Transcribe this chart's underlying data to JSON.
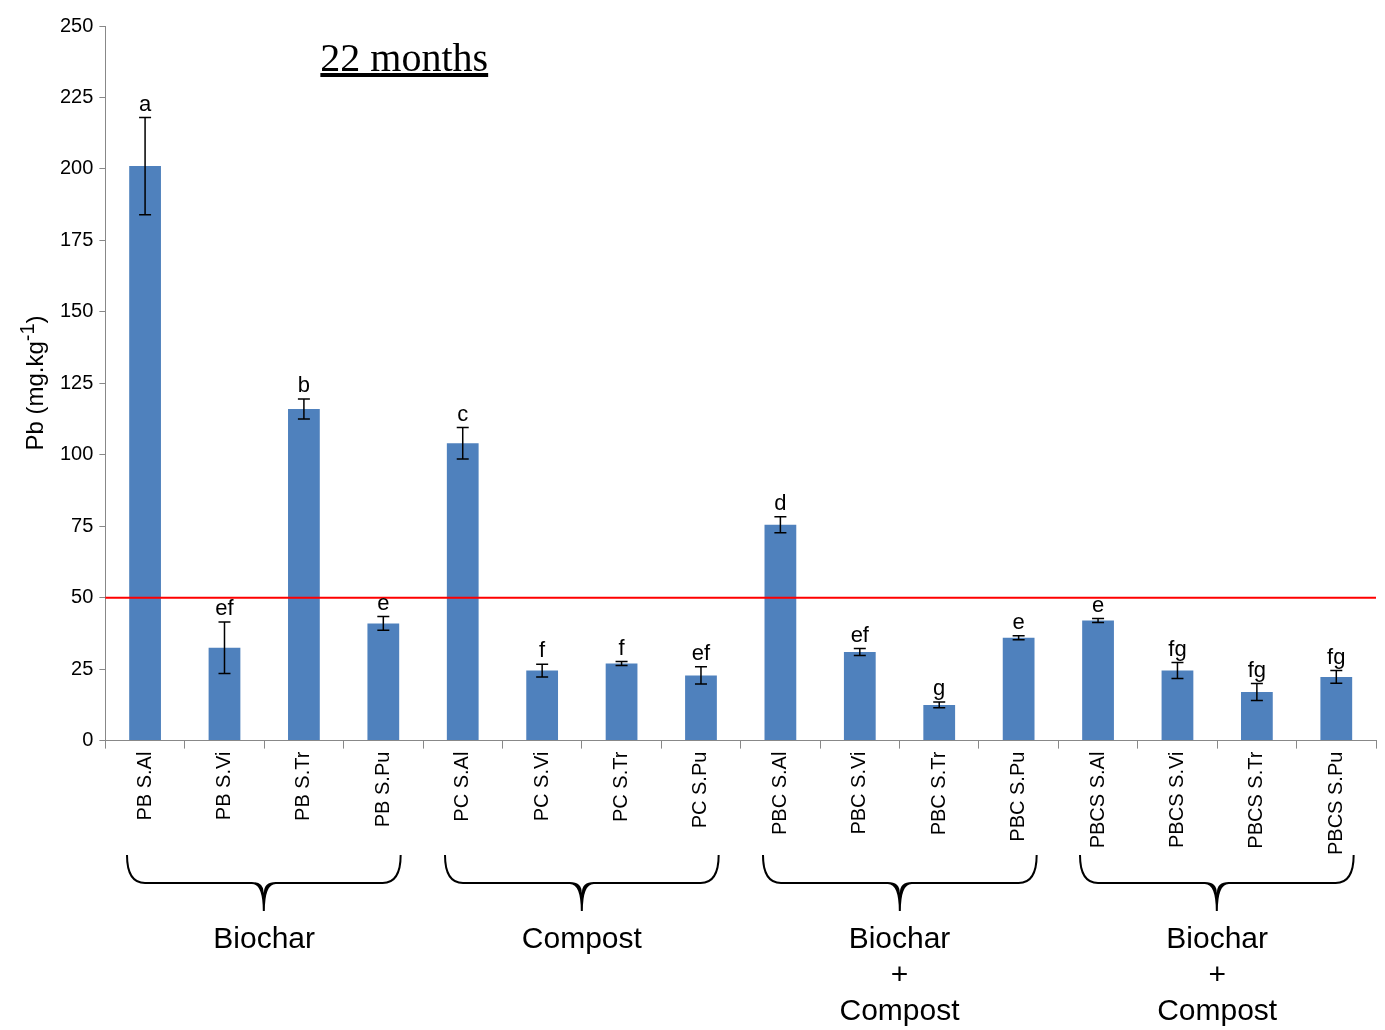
{
  "chart_data": {
    "type": "bar",
    "title": "22 months",
    "ylabel": "Pb (mg.kg$^{-1}$)",
    "categories": [
      "PB S.Al",
      "PB S.Vi",
      "PB S.Tr",
      "PB S.Pu",
      "PC S.Al",
      "PC S.Vi",
      "PC S.Tr",
      "PC S.Pu",
      "PBC S.Al",
      "PBC S.Vi",
      "PBC S.Tr",
      "PBC S.Pu",
      "PBCS S.Al",
      "PBCS S.Vi",
      "PBCS S.Tr",
      "PBCS S.Pu"
    ],
    "values": [
      201,
      32.5,
      116,
      41,
      104,
      24.5,
      27,
      22.8,
      75.5,
      31,
      12.5,
      36,
      42,
      24.5,
      17,
      22.3
    ],
    "errors": [
      17,
      9,
      3.5,
      2.4,
      5.5,
      2.2,
      0.7,
      3,
      2.8,
      1.2,
      1,
      0.7,
      0.7,
      2.8,
      3,
      2.2
    ],
    "color": "#4f81bd",
    "ylim": [
      0,
      250
    ],
    "yticks": [
      0,
      25,
      50,
      75,
      100,
      125,
      150,
      175,
      200,
      225,
      250
    ],
    "grid": false,
    "legend": false,
    "ref_lines": [
      {
        "axis": "y",
        "value": 50,
        "color": "#ff0000"
      }
    ],
    "annotations": [
      {
        "text": "a",
        "x": "PB S.Al",
        "y": 218
      },
      {
        "text": "ef",
        "x": "PB S.Vi",
        "y": 41.5
      },
      {
        "text": "b",
        "x": "PB S.Tr",
        "y": 119.5
      },
      {
        "text": "e",
        "x": "PB S.Pu",
        "y": 43.4
      },
      {
        "text": "c",
        "x": "PC S.Al",
        "y": 109.5
      },
      {
        "text": "f",
        "x": "PC S.Vi",
        "y": 26.7
      },
      {
        "text": "f",
        "x": "PC S.Tr",
        "y": 27.7
      },
      {
        "text": "ef",
        "x": "PC S.Pu",
        "y": 25.8
      },
      {
        "text": "d",
        "x": "PBC S.Al",
        "y": 78.3
      },
      {
        "text": "ef",
        "x": "PBC S.Vi",
        "y": 32.2
      },
      {
        "text": "g",
        "x": "PBC S.Tr",
        "y": 13.5
      },
      {
        "text": "e",
        "x": "PBC S.Pu",
        "y": 36.7
      },
      {
        "text": "e",
        "x": "PBCS S.Al",
        "y": 42.7
      },
      {
        "text": "fg",
        "x": "PBCS S.Vi",
        "y": 27.3
      },
      {
        "text": "fg",
        "x": "PBCS S.Tr",
        "y": 20
      },
      {
        "text": "fg",
        "x": "PBCS S.Pu",
        "y": 24.5
      },
      "Biochar",
      "Compost",
      "Biochar\n+\nCompost",
      "Biochar\n+\nCompost"
    ]
  }
}
